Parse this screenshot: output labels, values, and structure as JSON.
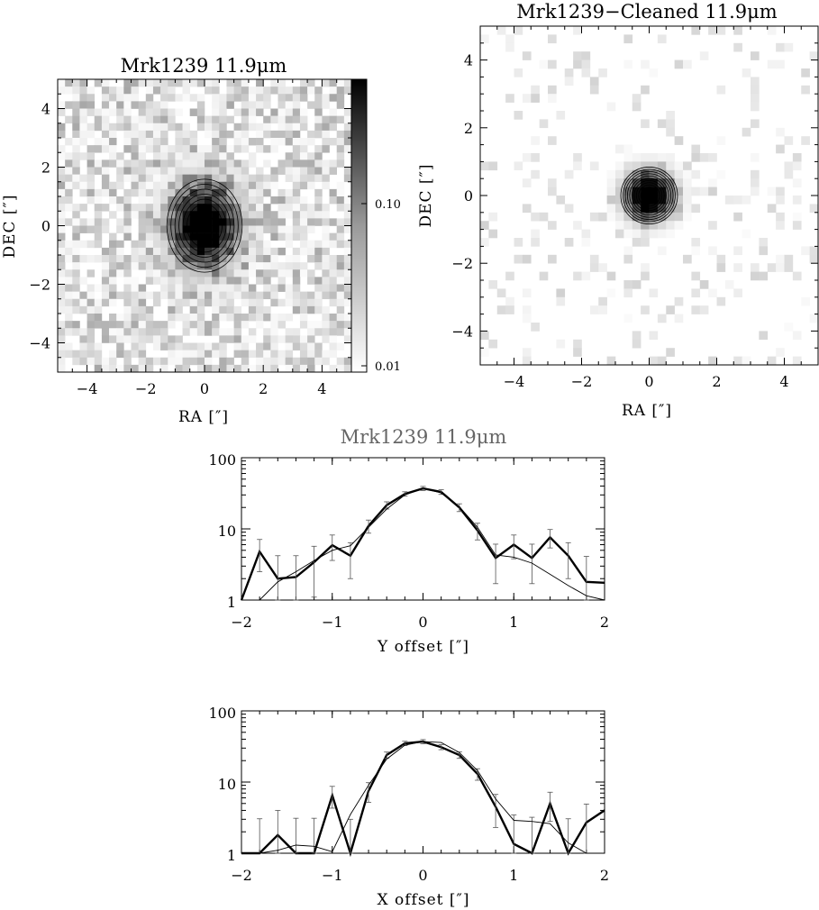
{
  "chart_data": [
    {
      "type": "heatmap",
      "title": "Mrk1239 11.9μm",
      "xlabel": "RA [″]",
      "ylabel": "DEC [″]",
      "xlim": [
        -5,
        5
      ],
      "ylim": [
        -5,
        5
      ],
      "xticks": [
        "−4",
        "−2",
        "0",
        "2",
        "4"
      ],
      "yticks": [
        "4",
        "2",
        "0",
        "−2",
        "−4"
      ],
      "colorbar": {
        "scale": "log",
        "ticks": [
          "0.10",
          "0.01"
        ]
      },
      "source": {
        "x": 0,
        "y": 0,
        "sx": 0.72,
        "sy": 0.9
      },
      "contour_levels": 9,
      "noise_seed": 7,
      "colormap": "gray-inverted"
    },
    {
      "type": "heatmap",
      "title": "Mrk1239−Cleaned 11.9μm",
      "xlabel": "RA [″]",
      "ylabel": "DEC [″]",
      "xlim": [
        -5,
        5
      ],
      "ylim": [
        -5,
        5
      ],
      "xticks": [
        "−4",
        "−2",
        "0",
        "2",
        "4"
      ],
      "yticks": [
        "4",
        "2",
        "0",
        "−2",
        "−4"
      ],
      "source": {
        "x": 0,
        "y": 0,
        "sx": 0.45,
        "sy": 0.45
      },
      "contour_levels": 12,
      "noise_seed": 19,
      "colormap": "gray-inverted"
    },
    {
      "type": "line",
      "title": "Mrk1239 11.9μm",
      "xlabel": "Y offset [″]",
      "xlim": [
        -2,
        2
      ],
      "ylim": [
        1,
        100
      ],
      "yscale": "log",
      "xticks": [
        "−2",
        "−1",
        "0",
        "1",
        "2"
      ],
      "yticks": [
        "100",
        "10",
        "1"
      ],
      "x": [
        -2.0,
        -1.8,
        -1.6,
        -1.4,
        -1.2,
        -1.0,
        -0.8,
        -0.6,
        -0.4,
        -0.2,
        0.0,
        0.2,
        0.4,
        0.6,
        0.8,
        1.0,
        1.2,
        1.4,
        1.6,
        1.8,
        2.0
      ],
      "series": [
        {
          "style": "thick",
          "values": [
            1.0,
            4.8,
            2.0,
            2.1,
            3.4,
            5.9,
            4.2,
            11.0,
            21.5,
            31.0,
            37.0,
            33.0,
            20.0,
            9.5,
            3.9,
            6.0,
            3.9,
            7.6,
            4.2,
            1.8,
            1.75
          ],
          "errors": [
            0,
            2.3,
            2.2,
            2.1,
            2.3,
            2.3,
            2.2,
            2.3,
            2.5,
            2.2,
            2.5,
            2.5,
            2.5,
            2.5,
            2.2,
            2.2,
            2.2,
            2.2,
            2.2,
            2.3,
            0
          ]
        },
        {
          "style": "thin",
          "values": [
            0.85,
            1.0,
            1.8,
            2.5,
            3.6,
            5.0,
            5.8,
            10.5,
            19.0,
            30.0,
            37.0,
            32.0,
            20.5,
            10.5,
            4.3,
            4.0,
            3.3,
            2.3,
            1.6,
            1.15,
            0.85
          ]
        }
      ]
    },
    {
      "type": "line",
      "xlabel": "X offset [″]",
      "xlim": [
        -2,
        2
      ],
      "ylim": [
        1,
        100
      ],
      "yscale": "log",
      "xticks": [
        "−2",
        "−1",
        "0",
        "1",
        "2"
      ],
      "yticks": [
        "100",
        "10",
        "1"
      ],
      "x": [
        -2.0,
        -1.8,
        -1.6,
        -1.4,
        -1.2,
        -1.0,
        -0.8,
        -0.6,
        -0.4,
        -0.2,
        0.0,
        0.2,
        0.4,
        0.6,
        0.8,
        1.0,
        1.2,
        1.4,
        1.6,
        1.8,
        2.0
      ],
      "series": [
        {
          "style": "thick",
          "values": [
            0.95,
            0.95,
            1.8,
            1.0,
            1.0,
            6.5,
            0.9,
            7.5,
            24.0,
            35.0,
            37.0,
            31.0,
            24.0,
            13.0,
            4.5,
            1.35,
            1.0,
            5.0,
            0.95,
            2.7,
            4.0
          ],
          "errors": [
            0,
            2.1,
            2.2,
            2.1,
            2.1,
            2.2,
            2.1,
            2.3,
            2.4,
            2.4,
            2.5,
            2.5,
            2.5,
            2.4,
            2.2,
            2.1,
            2.2,
            2.2,
            2.1,
            2.2,
            0
          ]
        },
        {
          "style": "thin",
          "values": [
            0.9,
            1.0,
            1.1,
            1.3,
            1.25,
            1.05,
            3.5,
            9.0,
            21.0,
            33.0,
            37.0,
            36.0,
            26.0,
            14.5,
            5.8,
            2.9,
            2.8,
            2.6,
            1.4,
            0.9,
            0.85
          ]
        }
      ]
    }
  ]
}
